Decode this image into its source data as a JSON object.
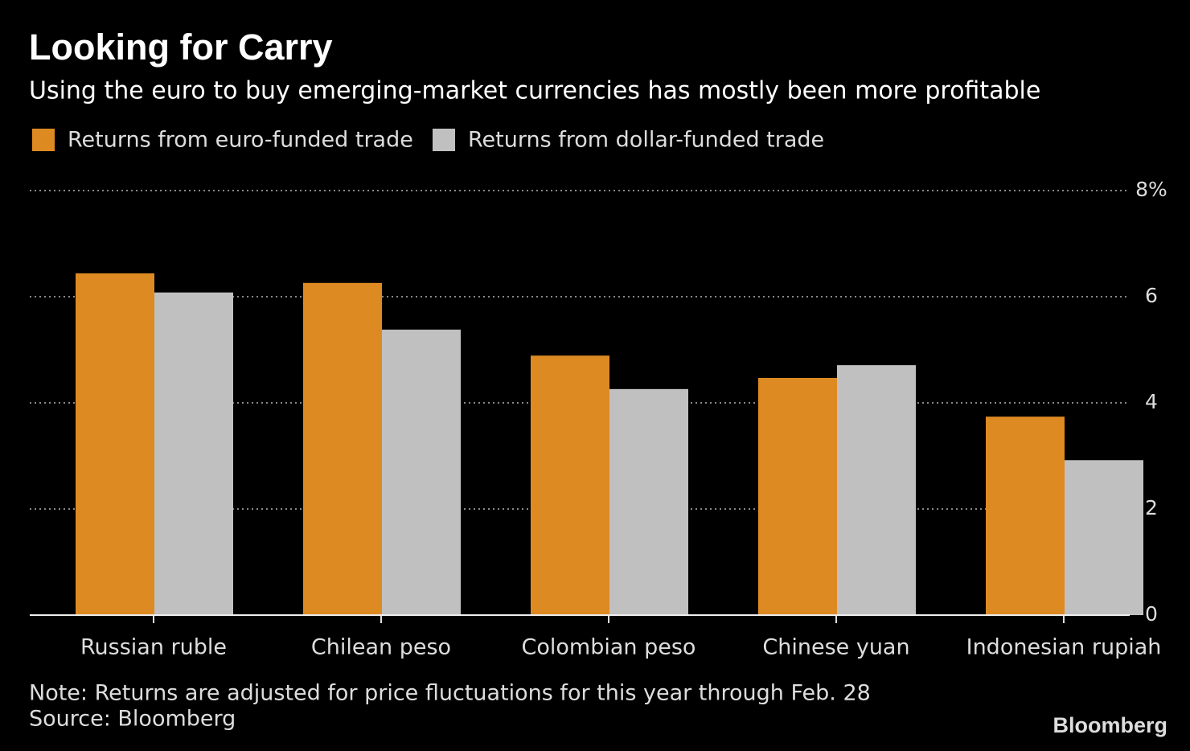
{
  "chart_data": {
    "type": "bar",
    "title": "Looking for Carry",
    "subtitle": "Using the euro to buy emerging-market currencies has mostly been more profitable",
    "categories": [
      "Russian ruble",
      "Chilean peso",
      "Colombian peso",
      "Chinese yuan",
      "Indonesian rupiah"
    ],
    "series": [
      {
        "name": "Returns from euro-funded trade",
        "color": "#dd8a22",
        "values": [
          6.44,
          6.26,
          4.89,
          4.47,
          3.74
        ]
      },
      {
        "name": "Returns from dollar-funded trade",
        "color": "#c0c0c0",
        "values": [
          6.08,
          5.38,
          4.26,
          4.71,
          2.92
        ]
      }
    ],
    "ylim": [
      0,
      8
    ],
    "yticks": [
      0,
      2,
      4,
      6,
      {
        "value": 8,
        "label": "8%"
      }
    ],
    "grid": true,
    "note": "Note: Returns are adjusted for price fluctuations for this year through Feb. 28",
    "source": "Source: Bloomberg",
    "brand": "Bloomberg"
  }
}
